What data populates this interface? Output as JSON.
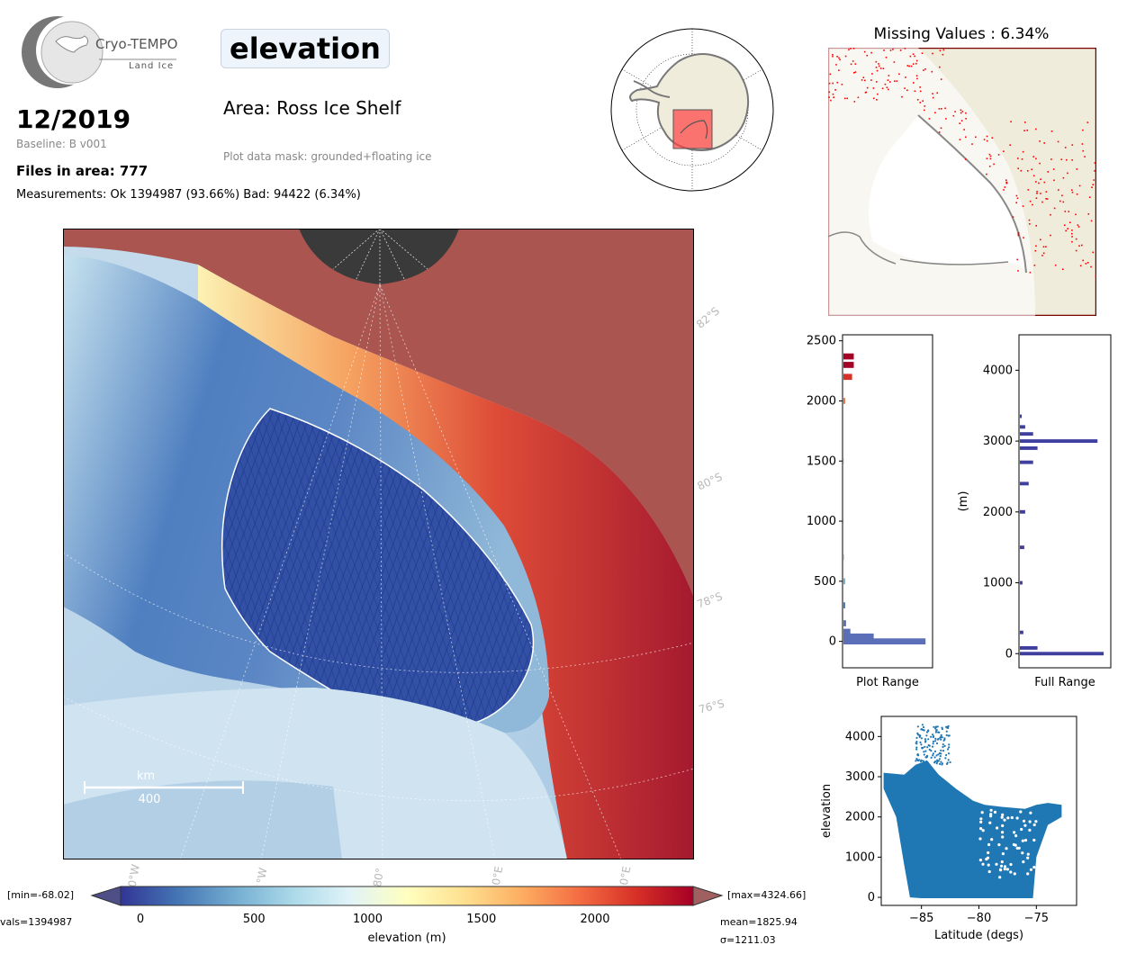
{
  "logo": {
    "name": "Cryo-TEMPO",
    "sub": "Land Ice"
  },
  "date": "12/2019",
  "baseline": "Baseline: B v001",
  "files": "Files in area: 777",
  "measurements": "Measurements: Ok 1394987 (93.66%) Bad: 94422 (6.34%)",
  "parameter": "elevation",
  "area": "Area: Ross Ice Shelf",
  "mask": "Plot data mask: grounded+floating ice",
  "missing_title": "Missing Values : 6.34%",
  "map": {
    "lat_labels": [
      "82°S",
      "80°S",
      "78°S",
      "76°S"
    ],
    "lon_labels": [
      "0°W",
      "°W",
      "80°",
      "0°E",
      "0°E"
    ],
    "scale_unit": "km",
    "scale_value": "400"
  },
  "colorbar": {
    "min_label": "[min=-68.02]",
    "max_label": "[max=4324.66]",
    "nvals_label": "vals=1394987",
    "mean_label": "mean=1825.94",
    "sigma_label": "σ=1211.03",
    "label": "elevation (m)",
    "ticks": [
      "0",
      "500",
      "1000",
      "1500",
      "2000"
    ],
    "colors": [
      "#313695",
      "#4575b4",
      "#74add1",
      "#abd9e9",
      "#e0f3f8",
      "#ffffbf",
      "#fee090",
      "#fdae61",
      "#f46d43",
      "#d73027",
      "#a50026"
    ]
  },
  "chart_data": [
    {
      "type": "histogram",
      "xlabel": "Plot Range",
      "ylabel": "",
      "ylim": [
        -220,
        2550
      ],
      "yticks": [
        0,
        500,
        1000,
        1500,
        2000,
        2500
      ],
      "bins": [
        {
          "y": 0,
          "count": 95
        },
        {
          "y": 40,
          "count": 35
        },
        {
          "y": 80,
          "count": 8
        },
        {
          "y": 150,
          "count": 3
        },
        {
          "y": 300,
          "count": 2
        },
        {
          "y": 500,
          "count": 2
        },
        {
          "y": 700,
          "count": 1
        },
        {
          "y": 1000,
          "count": 1
        },
        {
          "y": 1500,
          "count": 1
        },
        {
          "y": 2000,
          "count": 2
        },
        {
          "y": 2200,
          "count": 10
        },
        {
          "y": 2300,
          "count": 12
        },
        {
          "y": 2370,
          "count": 12
        }
      ]
    },
    {
      "type": "histogram",
      "xlabel": "Full Range",
      "ylabel": "(m)",
      "ylim": [
        -200,
        4500
      ],
      "yticks": [
        0,
        1000,
        2000,
        3000,
        4000
      ],
      "bins": [
        {
          "y": 0,
          "count": 95
        },
        {
          "y": 80,
          "count": 20
        },
        {
          "y": 300,
          "count": 4
        },
        {
          "y": 1000,
          "count": 3
        },
        {
          "y": 1500,
          "count": 5
        },
        {
          "y": 2000,
          "count": 6
        },
        {
          "y": 2400,
          "count": 10
        },
        {
          "y": 2700,
          "count": 15
        },
        {
          "y": 2900,
          "count": 20
        },
        {
          "y": 3000,
          "count": 88
        },
        {
          "y": 3100,
          "count": 15
        },
        {
          "y": 3200,
          "count": 6
        },
        {
          "y": 3350,
          "count": 2
        }
      ]
    },
    {
      "type": "scatter",
      "xlabel": "Latitude (degs)",
      "ylabel": "elevation",
      "xlim": [
        -88.5,
        -71.5
      ],
      "ylim": [
        -200,
        4500
      ],
      "xticks": [
        -85,
        -80,
        -75
      ],
      "yticks": [
        0,
        1000,
        2000,
        3000,
        4000
      ],
      "color": "#1f77b4",
      "upper_envelope": [
        [
          -88.3,
          3100
        ],
        [
          -86.5,
          3050
        ],
        [
          -85.5,
          3300
        ],
        [
          -84.5,
          3400
        ],
        [
          -83.5,
          3050
        ],
        [
          -82,
          2700
        ],
        [
          -80.5,
          2400
        ],
        [
          -79.5,
          2300
        ],
        [
          -78,
          2250
        ],
        [
          -76,
          2200
        ],
        [
          -75,
          2300
        ],
        [
          -74,
          2350
        ],
        [
          -72.8,
          2300
        ]
      ],
      "lower_envelope": [
        [
          -88.3,
          2700
        ],
        [
          -87.2,
          2000
        ],
        [
          -86.5,
          800
        ],
        [
          -86,
          0
        ],
        [
          -85,
          -20
        ],
        [
          -80,
          -20
        ],
        [
          -75.3,
          -20
        ],
        [
          -75,
          1000
        ],
        [
          -74,
          1800
        ],
        [
          -72.8,
          2000
        ]
      ]
    }
  ]
}
